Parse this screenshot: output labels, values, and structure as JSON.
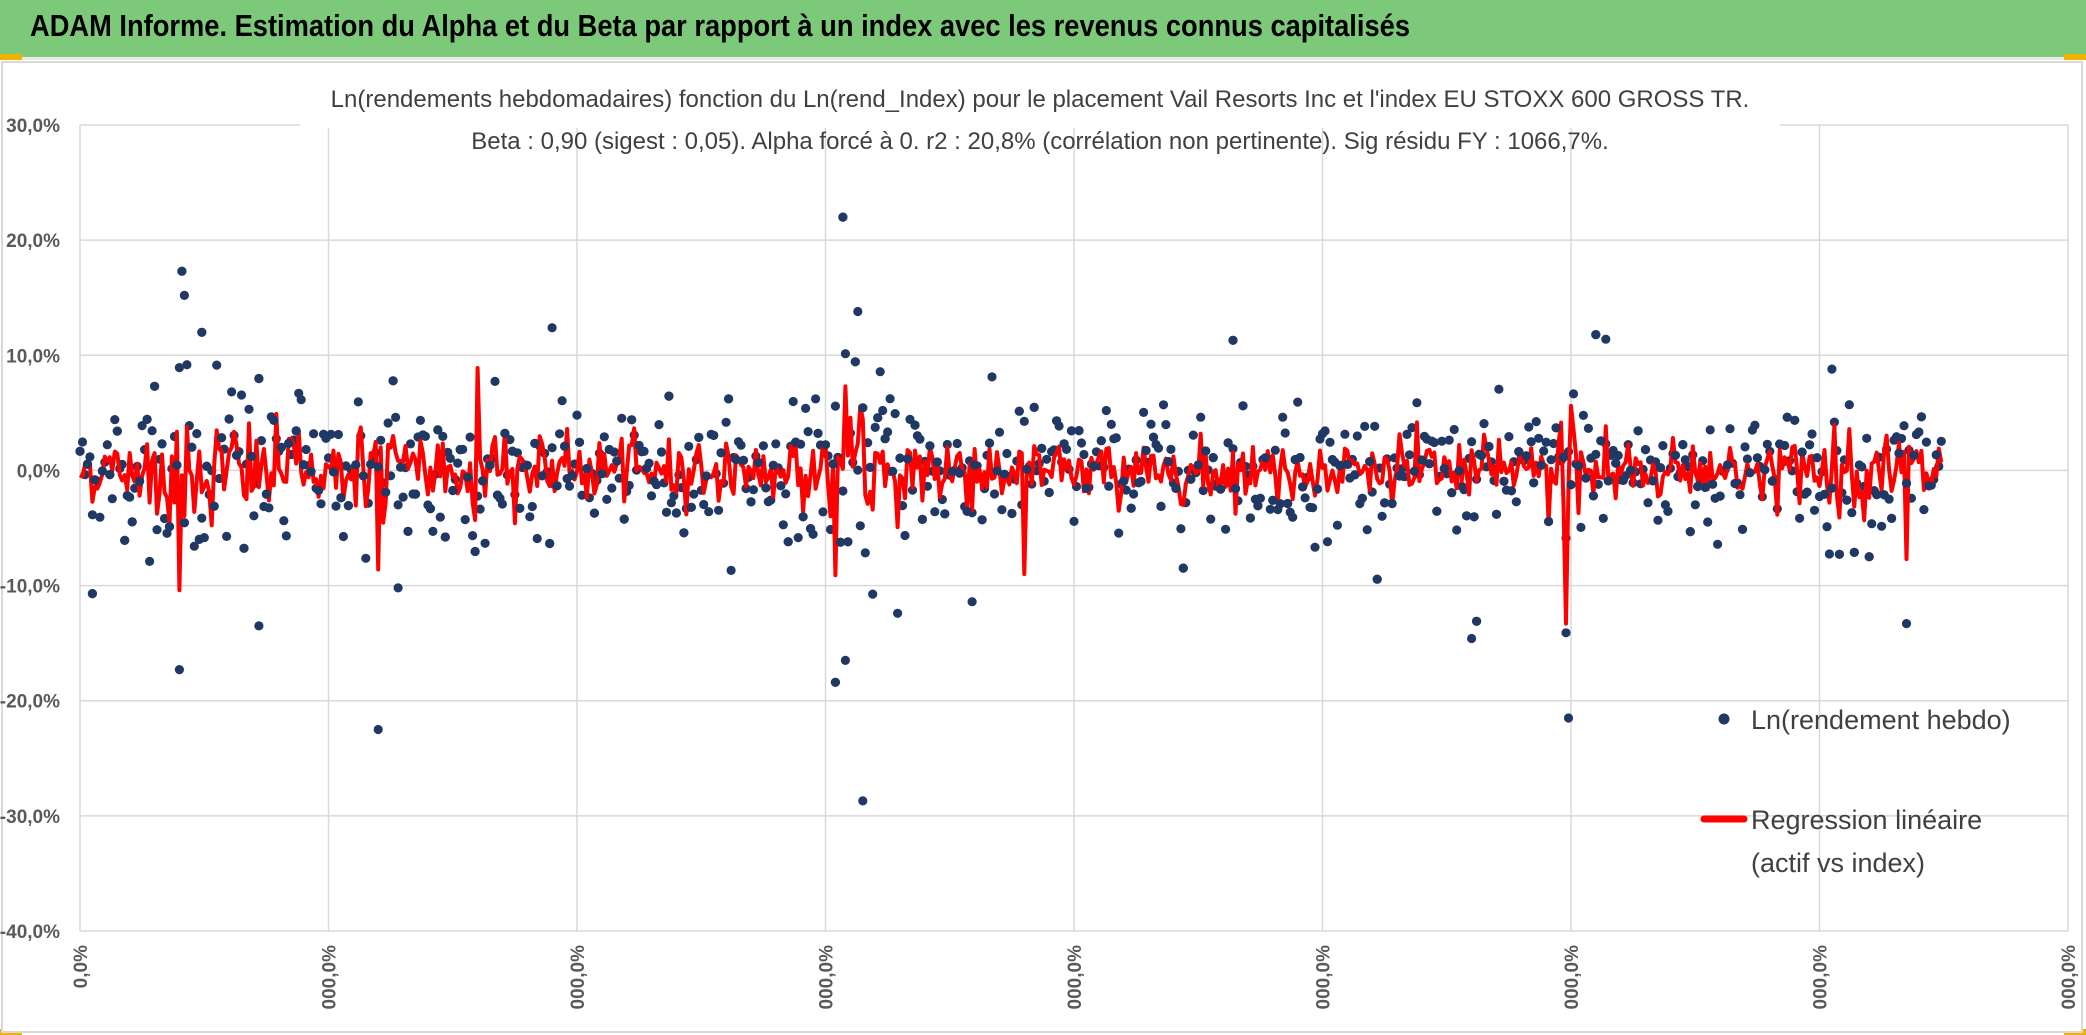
{
  "header": {
    "title": "ADAM Informe. Estimation du Alpha et du Beta par rapport à un index avec les revenus connus capitalisés"
  },
  "colors": {
    "banner": "#7dc97a",
    "scatter": "#203864",
    "regression": "#ff0000",
    "grid": "#d9d9d9",
    "text": "#404040"
  },
  "chart_data": {
    "type": "line",
    "title": "Ln(rendements hebdomadaires) fonction du Ln(rend_Index) pour le placement Vail Resorts Inc et l'index EU STOXX 600 GROSS TR.",
    "subtitle": "Beta : 0,90 (sigest : 0,05). Alpha forcé à 0. r2 : 20,8% (corrélation non pertinente). Sig résidu FY : 1066,7%.",
    "ylim": [
      -40,
      30
    ],
    "xlim": [
      0,
      800
    ],
    "y_tick_labels": [
      "30,0%",
      "20,0%",
      "10,0%",
      "0,0%",
      "-10,0%",
      "-20,0%",
      "-30,0%",
      "-40,0%"
    ],
    "x_tick_labels": [
      "0,0%",
      "000,0%",
      "000,0%",
      "000,0%",
      "000,0%",
      "000,0%",
      "000,0%",
      "000,0%",
      "000,0%"
    ],
    "n_points": 750,
    "legend": {
      "scatter_label": "Ln(rendement hebdo)",
      "line_label_1": "Regression linéaire",
      "line_label_2": "(actif vs index)",
      "position": "right"
    },
    "series": [
      {
        "name": "Ln(rendement hebdo)",
        "kind": "scatter",
        "notable_points": [
          {
            "x": 41,
            "y": 17.3
          },
          {
            "x": 42,
            "y": 15.2
          },
          {
            "x": 40,
            "y": -17.3
          },
          {
            "x": 49,
            "y": 12.0
          },
          {
            "x": 120,
            "y": -22.5
          },
          {
            "x": 190,
            "y": 12.4
          },
          {
            "x": 307,
            "y": 22.0
          },
          {
            "x": 313,
            "y": 13.8
          },
          {
            "x": 315,
            "y": -28.7
          },
          {
            "x": 304,
            "y": -18.4
          },
          {
            "x": 308,
            "y": -16.5
          },
          {
            "x": 359,
            "y": -11.4
          },
          {
            "x": 464,
            "y": 11.3
          },
          {
            "x": 599,
            "y": -21.5
          },
          {
            "x": 598,
            "y": -14.1
          },
          {
            "x": 610,
            "y": 11.8
          },
          {
            "x": 614,
            "y": 11.4
          },
          {
            "x": 560,
            "y": -14.6
          },
          {
            "x": 562,
            "y": -13.1
          },
          {
            "x": 705,
            "y": 8.8
          },
          {
            "x": 735,
            "y": -13.3
          },
          {
            "x": 5,
            "y": -10.7
          },
          {
            "x": 72,
            "y": -13.5
          },
          {
            "x": 128,
            "y": -10.2
          }
        ]
      },
      {
        "name": "Regression linéaire (actif vs index)",
        "kind": "line",
        "notable_points": [
          {
            "x": 40,
            "y": -10.4
          },
          {
            "x": 120,
            "y": -8.6
          },
          {
            "x": 160,
            "y": 8.9
          },
          {
            "x": 304,
            "y": -9.1
          },
          {
            "x": 308,
            "y": 7.3
          },
          {
            "x": 380,
            "y": -9.0
          },
          {
            "x": 598,
            "y": -13.3
          },
          {
            "x": 600,
            "y": 5.6
          },
          {
            "x": 735,
            "y": -7.7
          }
        ]
      }
    ]
  }
}
